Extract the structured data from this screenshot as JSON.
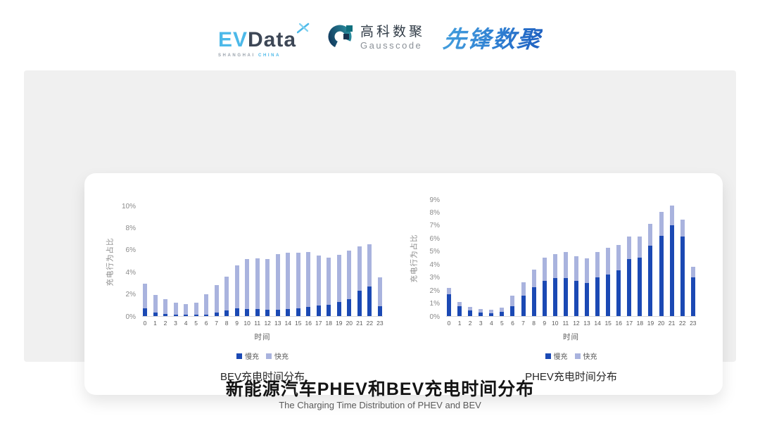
{
  "header": {
    "evdata_logo": {
      "part1": "EV",
      "part2": "Data",
      "sub_left": "SHANGHAI",
      "sub_right": "CHINA",
      "accent_color": "#4cb9e9",
      "dark_color": "#3d4756"
    },
    "gausscode_logo": {
      "name_cn": "高科数聚",
      "name_en": "Gausscode"
    },
    "pioneer_logo": {
      "text": "先锋数聚",
      "color": "#2b7fd0"
    }
  },
  "chart_data": [
    {
      "type": "bar",
      "stacked": true,
      "title": "BEV充电时间分布",
      "xlabel": "时间",
      "ylabel": "充电行为占比",
      "ylim": [
        0,
        10
      ],
      "ytick_values": [
        0,
        2,
        4,
        6,
        8,
        10
      ],
      "ytick_labels": [
        "0%",
        "2%",
        "4%",
        "6%",
        "8%",
        "10%"
      ],
      "categories": [
        "0",
        "1",
        "2",
        "3",
        "4",
        "5",
        "6",
        "7",
        "8",
        "9",
        "10",
        "11",
        "12",
        "13",
        "14",
        "15",
        "16",
        "17",
        "18",
        "19",
        "20",
        "21",
        "22",
        "23"
      ],
      "series": [
        {
          "name": "慢充",
          "color": "#1B49B4",
          "values": [
            0.7,
            0.35,
            0.2,
            0.12,
            0.1,
            0.1,
            0.15,
            0.35,
            0.5,
            0.7,
            0.65,
            0.65,
            0.55,
            0.6,
            0.65,
            0.7,
            0.8,
            0.95,
            1.05,
            1.25,
            1.55,
            2.3,
            2.65,
            0.9
          ]
        },
        {
          "name": "快充",
          "color": "#A9B3DE",
          "values": [
            2.2,
            1.55,
            1.3,
            1.1,
            1.0,
            1.1,
            1.85,
            2.45,
            3.1,
            3.9,
            4.5,
            4.55,
            4.6,
            5.0,
            5.1,
            5.05,
            5.0,
            4.5,
            4.25,
            4.3,
            4.35,
            4.0,
            3.85,
            2.6
          ]
        }
      ],
      "legend_position": "bottom",
      "grid": false
    },
    {
      "type": "bar",
      "stacked": true,
      "title": "PHEV充电时间分布",
      "xlabel": "时间",
      "ylabel": "充电行为占比",
      "ylim": [
        0,
        9
      ],
      "ytick_values": [
        0,
        1,
        2,
        3,
        4,
        5,
        6,
        7,
        8,
        9
      ],
      "ytick_labels": [
        "0%",
        "1%",
        "2%",
        "3%",
        "4%",
        "5%",
        "6%",
        "7%",
        "8%",
        "9%"
      ],
      "categories": [
        "0",
        "1",
        "2",
        "3",
        "4",
        "5",
        "6",
        "7",
        "8",
        "9",
        "10",
        "11",
        "12",
        "13",
        "14",
        "15",
        "16",
        "17",
        "18",
        "19",
        "20",
        "21",
        "22",
        "23"
      ],
      "series": [
        {
          "name": "慢充",
          "color": "#1B49B4",
          "values": [
            1.7,
            0.75,
            0.45,
            0.25,
            0.22,
            0.3,
            0.75,
            1.6,
            2.2,
            2.7,
            2.95,
            2.95,
            2.7,
            2.55,
            3.0,
            3.2,
            3.5,
            4.4,
            4.5,
            5.4,
            6.2,
            7.0,
            6.15,
            3.0
          ]
        },
        {
          "name": "快充",
          "color": "#A9B3DE",
          "values": [
            0.45,
            0.35,
            0.25,
            0.3,
            0.28,
            0.35,
            0.8,
            1.0,
            1.4,
            1.8,
            1.8,
            2.0,
            1.9,
            1.9,
            1.95,
            2.05,
            2.0,
            1.75,
            1.65,
            1.7,
            1.8,
            1.5,
            1.3,
            0.8
          ]
        }
      ],
      "legend_position": "bottom",
      "grid": false
    }
  ],
  "footer": {
    "title": "新能源汽车PHEV和BEV充电时间分布",
    "subtitle": "The Charging Time Distribution of PHEV and BEV"
  }
}
